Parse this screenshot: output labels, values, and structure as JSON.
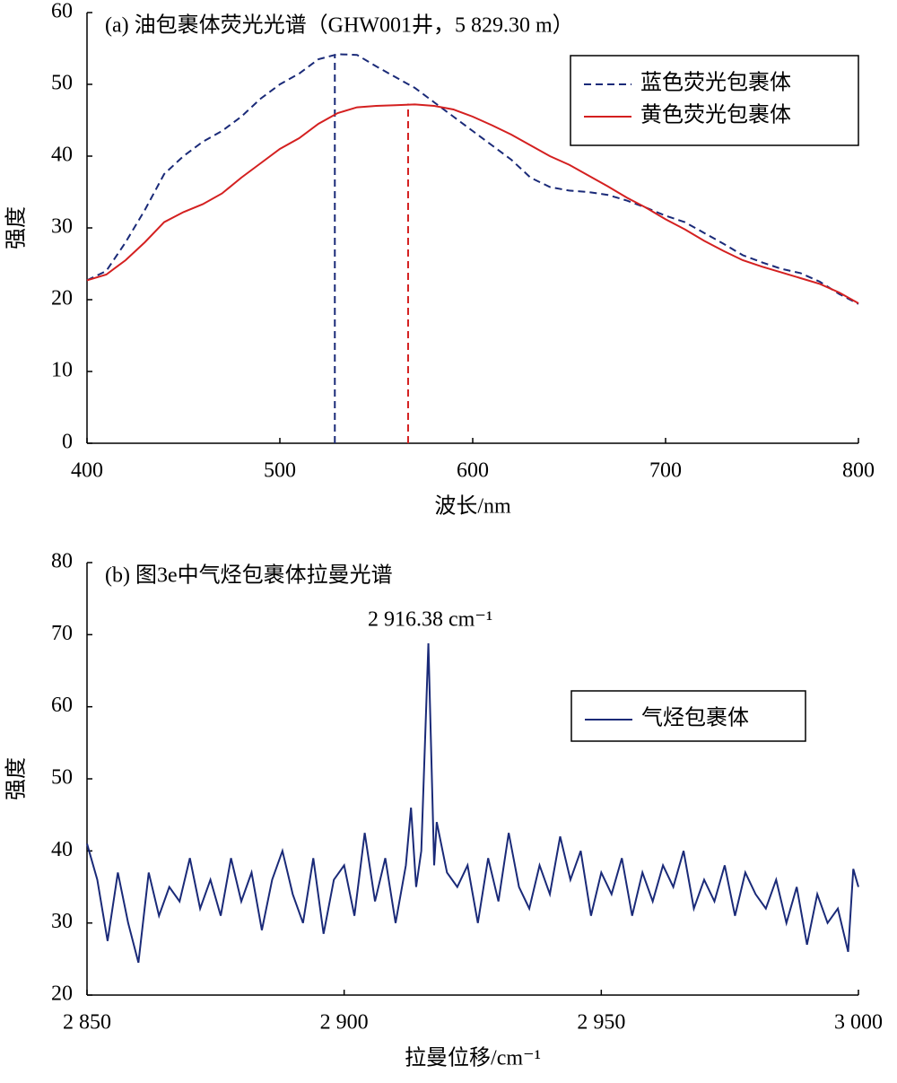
{
  "chart_data": [
    {
      "type": "line",
      "title": "(a) 油包裹体荧光光谱（GHW001井，5 829.30 m）",
      "x_label": "波长/nm",
      "y_label": "强度",
      "x": [
        400,
        410,
        420,
        430,
        440,
        450,
        460,
        470,
        480,
        490,
        500,
        510,
        520,
        530,
        540,
        550,
        560,
        570,
        580,
        590,
        600,
        610,
        620,
        630,
        640,
        650,
        660,
        670,
        680,
        690,
        700,
        710,
        720,
        730,
        740,
        750,
        760,
        770,
        780,
        790,
        800
      ],
      "series": [
        {
          "name": "蓝色荧光包裹体",
          "color": "#1a2a78",
          "style": "dashed",
          "values": [
            22.7,
            24,
            28,
            32.5,
            37.5,
            40,
            42,
            43.5,
            45.5,
            48,
            50,
            51.5,
            53.5,
            54.2,
            54.1,
            52.5,
            51,
            49.5,
            47.5,
            45.5,
            43.5,
            41.5,
            39.5,
            37,
            35.7,
            35.2,
            35,
            34.6,
            33.8,
            32.8,
            31.7,
            30.8,
            29.3,
            27.8,
            26.2,
            25.2,
            24.3,
            23.7,
            22.5,
            20.8,
            19.4
          ],
          "peak": {
            "x": 528.5,
            "y": 54.2
          }
        },
        {
          "name": "黄色荧光包裹体",
          "color": "#d42020",
          "style": "solid",
          "values": [
            22.7,
            23.5,
            25.5,
            28,
            30.8,
            32.2,
            33.3,
            34.8,
            37,
            39,
            41,
            42.5,
            44.5,
            46,
            46.8,
            47,
            47.1,
            47.2,
            47,
            46.5,
            45.5,
            44.3,
            43,
            41.5,
            40,
            38.8,
            37.3,
            35.8,
            34.2,
            32.8,
            31.2,
            29.8,
            28.2,
            26.8,
            25.5,
            24.6,
            23.8,
            23,
            22.2,
            21,
            19.5
          ],
          "peak": {
            "x": 566.5,
            "y": 47.3
          }
        }
      ],
      "xlim": [
        400,
        800
      ],
      "xticks": [
        400,
        500,
        600,
        700,
        800
      ],
      "ylim": [
        0,
        60
      ],
      "yticks": [
        0,
        10,
        20,
        30,
        40,
        50,
        60
      ],
      "legend": "upper right"
    },
    {
      "type": "line",
      "title": "(b) 图3e中气烃包裹体拉曼光谱",
      "x_label": "拉曼位移/cm⁻¹",
      "y_label": "强度",
      "annotation": "2 916.38 cm⁻¹",
      "x": [
        2850,
        2852,
        2854,
        2856,
        2858,
        2860,
        2862,
        2864,
        2866,
        2868,
        2870,
        2872,
        2874,
        2876,
        2878,
        2880,
        2882,
        2884,
        2886,
        2888,
        2890,
        2892,
        2894,
        2896,
        2898,
        2900,
        2902,
        2904,
        2906,
        2908,
        2910,
        2912,
        2913,
        2914,
        2915,
        2916.38,
        2917.5,
        2918,
        2920,
        2922,
        2924,
        2926,
        2928,
        2930,
        2932,
        2934,
        2936,
        2938,
        2940,
        2942,
        2944,
        2946,
        2948,
        2950,
        2952,
        2954,
        2956,
        2958,
        2960,
        2962,
        2964,
        2966,
        2968,
        2970,
        2972,
        2974,
        2976,
        2978,
        2980,
        2982,
        2984,
        2986,
        2988,
        2990,
        2992,
        2994,
        2996,
        2998,
        2999,
        3000
      ],
      "series": [
        {
          "name": "气烃包裹体",
          "color": "#1a2a78",
          "style": "solid",
          "values": [
            41,
            36,
            27.5,
            37,
            30,
            24.5,
            37,
            31,
            35,
            33,
            39,
            32,
            36,
            31,
            39,
            33,
            37,
            29,
            36,
            40,
            34,
            30,
            39,
            28.5,
            36,
            38,
            31,
            42.5,
            33,
            39,
            30,
            38,
            46,
            35,
            40,
            68.8,
            38,
            44,
            37,
            35,
            38,
            30,
            39,
            33,
            42.5,
            35,
            32,
            38,
            34,
            42,
            36,
            40,
            31,
            37,
            34,
            39,
            31,
            37,
            33,
            38,
            35,
            40,
            32,
            36,
            33,
            38,
            31,
            37,
            34,
            32,
            36,
            30,
            35,
            27,
            34,
            30,
            32,
            26,
            37.5,
            35
          ]
        }
      ],
      "xlim": [
        2850,
        3000
      ],
      "xticks": [
        {
          "value": 2850,
          "label": "2 850"
        },
        {
          "value": 2900,
          "label": "2 900"
        },
        {
          "value": 2950,
          "label": "2 950"
        },
        {
          "value": 3000,
          "label": "3 000"
        }
      ],
      "ylim": [
        20,
        80
      ],
      "yticks": [
        20,
        30,
        40,
        50,
        60,
        70,
        80
      ],
      "legend": "upper right"
    }
  ]
}
